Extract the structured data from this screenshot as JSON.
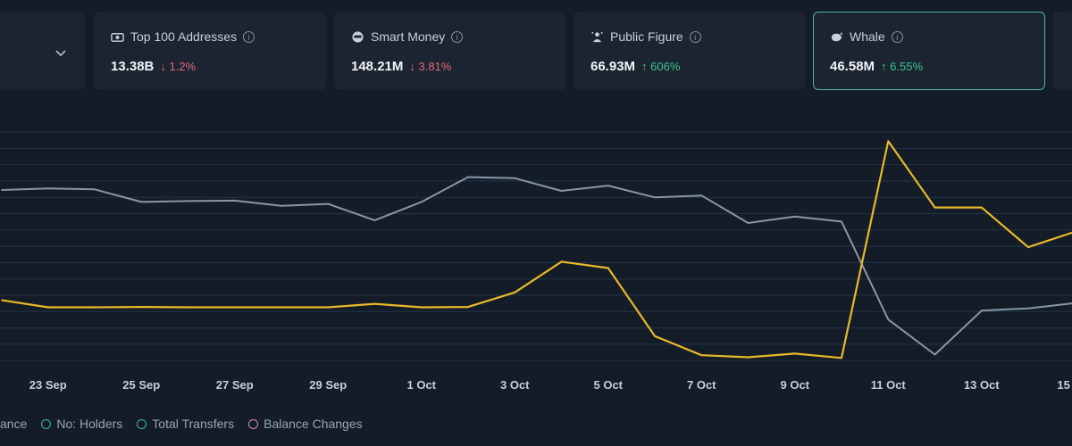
{
  "cards": [
    {
      "label": "Top 100 Addresses",
      "value": "13.38B",
      "change": "↓ 1.2%",
      "direction": "down",
      "icon": "cash-icon"
    },
    {
      "label": "Smart Money",
      "value": "148.21M",
      "change": "↓ 3.81%",
      "direction": "down",
      "icon": "smart-money-icon"
    },
    {
      "label": "Public Figure",
      "value": "66.93M",
      "change": "↑ 606%",
      "direction": "up",
      "icon": "public-figure-icon"
    },
    {
      "label": "Whale",
      "value": "46.58M",
      "change": "↑ 6.55%",
      "direction": "up",
      "icon": "whale-icon"
    }
  ],
  "dropdown_icon": "chevron-down-icon",
  "legend": [
    {
      "label": "ance",
      "color": "#8fa0b5"
    },
    {
      "label": "No: Holders",
      "color": "#3fb6a6"
    },
    {
      "label": "Total Transfers",
      "color": "#3fb6a6"
    },
    {
      "label": "Balance Changes",
      "color": "#d38bc4"
    }
  ],
  "chart_data": {
    "type": "line",
    "x": [
      "22 Sep",
      "23 Sep",
      "24 Sep",
      "25 Sep",
      "26 Sep",
      "27 Sep",
      "28 Sep",
      "29 Sep",
      "30 Sep",
      "1 Oct",
      "2 Oct",
      "3 Oct",
      "4 Oct",
      "5 Oct",
      "6 Oct",
      "7 Oct",
      "8 Oct",
      "9 Oct",
      "10 Oct",
      "11 Oct",
      "12 Oct",
      "13 Oct",
      "14 Oct",
      "15 Oct"
    ],
    "x_tick_labels": [
      "23 Sep",
      "25 Sep",
      "27 Sep",
      "29 Sep",
      "1 Oct",
      "3 Oct",
      "5 Oct",
      "7 Oct",
      "9 Oct",
      "11 Oct",
      "13 Oct",
      "15 Oct"
    ],
    "series": [
      {
        "color": "#8a96a6",
        "values": [
          80.9,
          82,
          81.3,
          72.7,
          73.3,
          73.6,
          70,
          71.3,
          60.1,
          72.7,
          89.8,
          89,
          80.3,
          83.9,
          75.8,
          77.1,
          58.2,
          62.6,
          59.2,
          -8.2,
          -32.3,
          -2.1,
          -0.5,
          3.1
        ]
      },
      {
        "color": "#e8b829",
        "values": [
          5.2,
          0.2,
          0.2,
          0.5,
          0.2,
          0.2,
          0.2,
          0.2,
          2.6,
          0.2,
          0.5,
          10.5,
          31.6,
          27.2,
          -19.6,
          -32.7,
          -34.1,
          -31.6,
          -34.6,
          114.5,
          68.9,
          68.9,
          41.6,
          52.2
        ]
      }
    ],
    "ylim": [
      -37.5,
      122
    ],
    "grid": true
  }
}
